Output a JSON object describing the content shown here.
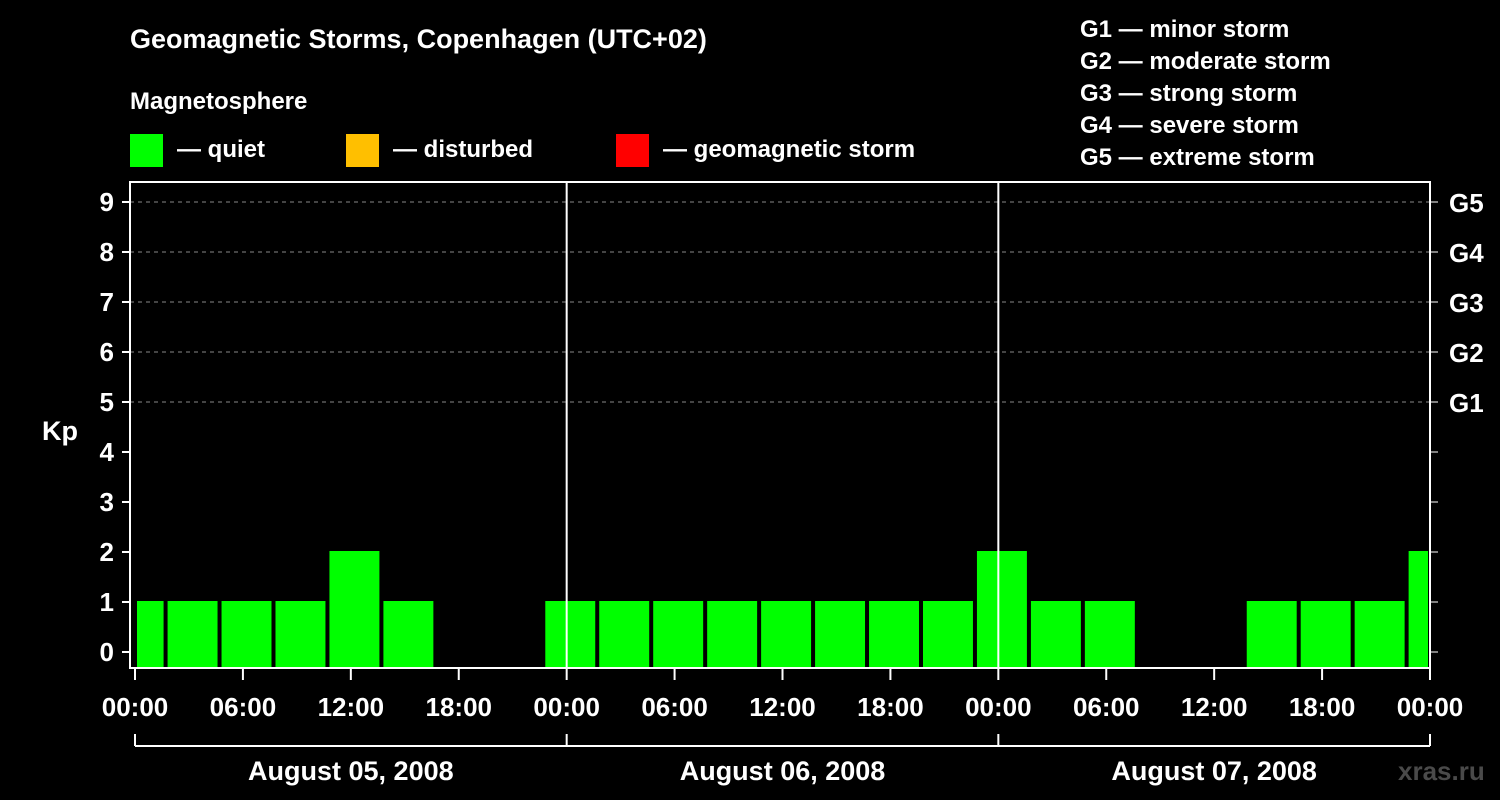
{
  "title": "Geomagnetic Storms, Copenhagen (UTC+02)",
  "legend": {
    "heading": "Magnetosphere",
    "items": [
      {
        "label": "— quiet",
        "color": "#00ff00"
      },
      {
        "label": "— disturbed",
        "color": "#ffbf00"
      },
      {
        "label": "— geomagnetic storm",
        "color": "#ff0000"
      }
    ],
    "storm_scale": [
      "G1 — minor storm",
      "G2 — moderate storm",
      "G3 — strong storm",
      "G4 — severe storm",
      "G5 — extreme storm"
    ]
  },
  "watermark": "xras.ru",
  "chart_data": {
    "type": "bar",
    "ylabel": "Kp",
    "ylim": [
      0,
      9
    ],
    "y_ticks": [
      "0",
      "1",
      "2",
      "3",
      "4",
      "5",
      "6",
      "7",
      "8",
      "9"
    ],
    "right_axis_labels": [
      {
        "kp": 5,
        "label": "G1"
      },
      {
        "kp": 6,
        "label": "G2"
      },
      {
        "kp": 7,
        "label": "G3"
      },
      {
        "kp": 8,
        "label": "G4"
      },
      {
        "kp": 9,
        "label": "G5"
      }
    ],
    "x_tick_labels": [
      "00:00",
      "06:00",
      "12:00",
      "18:00",
      "00:00",
      "06:00",
      "12:00",
      "18:00",
      "00:00",
      "06:00",
      "12:00",
      "18:00",
      "00:00"
    ],
    "day_labels": [
      "August 05, 2008",
      "August 06, 2008",
      "August 07, 2008"
    ],
    "grid": "dashed horizontal at Kp 5-9",
    "bars": [
      {
        "start_hour": 0,
        "end_hour": 1.7,
        "kp": 1
      },
      {
        "start_hour": 1.7,
        "end_hour": 4.7,
        "kp": 1
      },
      {
        "start_hour": 4.7,
        "end_hour": 7.7,
        "kp": 1
      },
      {
        "start_hour": 7.7,
        "end_hour": 10.7,
        "kp": 1
      },
      {
        "start_hour": 10.7,
        "end_hour": 13.7,
        "kp": 2
      },
      {
        "start_hour": 13.7,
        "end_hour": 16.7,
        "kp": 1
      },
      {
        "start_hour": 22.7,
        "end_hour": 25.7,
        "kp": 1
      },
      {
        "start_hour": 25.7,
        "end_hour": 28.7,
        "kp": 1
      },
      {
        "start_hour": 28.7,
        "end_hour": 31.7,
        "kp": 1
      },
      {
        "start_hour": 31.7,
        "end_hour": 34.7,
        "kp": 1
      },
      {
        "start_hour": 34.7,
        "end_hour": 37.7,
        "kp": 1
      },
      {
        "start_hour": 37.7,
        "end_hour": 40.7,
        "kp": 1
      },
      {
        "start_hour": 40.7,
        "end_hour": 43.7,
        "kp": 1
      },
      {
        "start_hour": 43.7,
        "end_hour": 46.7,
        "kp": 1
      },
      {
        "start_hour": 46.7,
        "end_hour": 49.7,
        "kp": 2
      },
      {
        "start_hour": 49.7,
        "end_hour": 52.7,
        "kp": 1
      },
      {
        "start_hour": 52.7,
        "end_hour": 55.7,
        "kp": 1
      },
      {
        "start_hour": 61.7,
        "end_hour": 64.7,
        "kp": 1
      },
      {
        "start_hour": 64.7,
        "end_hour": 67.7,
        "kp": 1
      },
      {
        "start_hour": 67.7,
        "end_hour": 70.7,
        "kp": 1
      },
      {
        "start_hour": 70.7,
        "end_hour": 72,
        "kp": 2
      }
    ]
  }
}
